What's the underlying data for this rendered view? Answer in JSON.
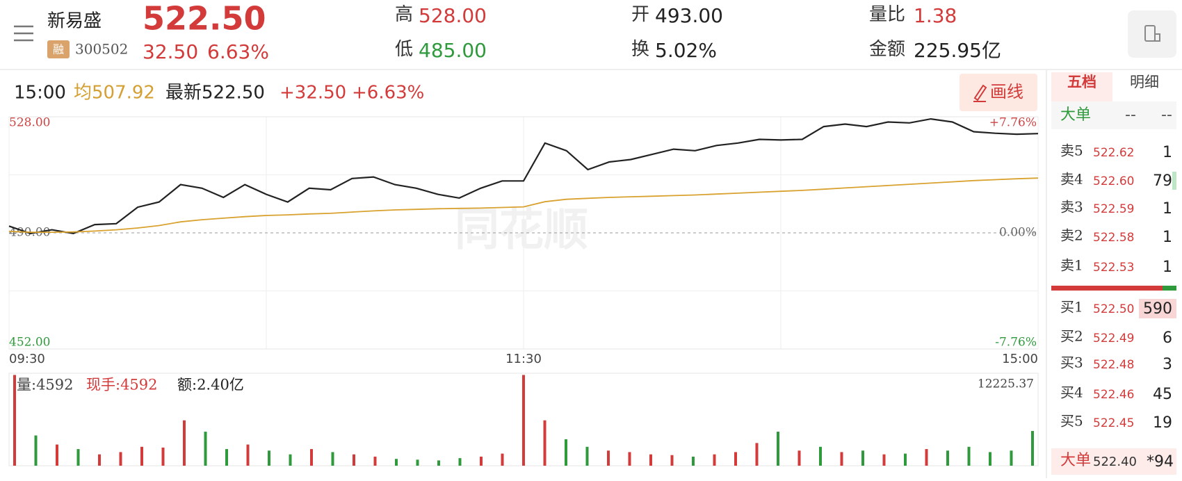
{
  "header": {
    "name": "新易盛",
    "badge": "融",
    "code": "300502",
    "price": "522.50",
    "change": "32.50",
    "change_pct": "6.63%",
    "stats": [
      {
        "label": "高",
        "value": "528.00"
      },
      {
        "label": "低",
        "value": "485.00"
      },
      {
        "label": "开",
        "value": "493.00"
      },
      {
        "label": "换",
        "value": "5.02%"
      },
      {
        "label": "量比",
        "value": "1.38"
      },
      {
        "label": "金额",
        "value": "225.95亿"
      }
    ]
  },
  "info_bar": {
    "time": "15:00",
    "average": "均507.92",
    "latest": "最新522.50",
    "change": "+32.50",
    "change_pct": "+6.63%",
    "draw_button": "画线"
  },
  "watermark": "同花顺",
  "chart_data": [
    {
      "type": "line",
      "x": [
        0,
        5,
        10,
        15,
        20,
        25,
        30,
        35,
        40,
        45,
        50,
        55,
        60,
        65,
        70,
        75,
        80,
        85,
        90,
        95,
        100,
        105,
        110,
        115,
        120,
        125,
        130,
        135,
        140,
        145,
        150,
        155,
        160,
        165,
        170,
        175,
        180,
        185,
        190,
        195,
        200,
        205,
        210,
        215,
        220,
        225,
        230,
        235,
        240
      ],
      "xlim": [
        0,
        240
      ],
      "xticks": [
        {
          "value": 0,
          "label": "09:30"
        },
        {
          "value": 120,
          "label": "11:30"
        },
        {
          "value": 240,
          "label": "15:00"
        }
      ],
      "ylim": [
        452,
        528
      ],
      "yticks": [
        {
          "value": 528,
          "label": "528.00"
        },
        {
          "value": 490,
          "label": "490.00"
        },
        {
          "value": 452,
          "label": "452.00"
        }
      ],
      "y2lim": [
        -7.76,
        7.76
      ],
      "y2ticks": [
        {
          "value": 7.76,
          "label": "+7.76%"
        },
        {
          "value": 0,
          "label": "0.00%"
        },
        {
          "value": -7.76,
          "label": "-7.76%"
        }
      ],
      "series": [
        {
          "color": "#222222",
          "values": [
            492.2,
            489.8,
            491.0,
            489.8,
            492.7,
            493.0,
            498.4,
            500.1,
            505.8,
            504.6,
            501.6,
            505.8,
            502.6,
            500.1,
            504.6,
            504.1,
            507.8,
            508.3,
            505.8,
            504.6,
            502.6,
            501.4,
            504.6,
            507.0,
            507.0,
            519.4,
            516.9,
            510.7,
            513.2,
            514.0,
            515.7,
            517.4,
            516.9,
            518.6,
            519.4,
            520.6,
            520.4,
            520.6,
            524.8,
            525.6,
            524.8,
            526.3,
            526.0,
            527.3,
            526.3,
            523.1,
            522.6,
            522.3,
            522.5
          ]
        },
        {
          "color": "#d9a12e",
          "values": [
            490.5,
            490.2,
            490.2,
            490.3,
            490.6,
            491.0,
            491.6,
            492.4,
            493.6,
            494.3,
            494.8,
            495.3,
            495.7,
            495.9,
            496.2,
            496.4,
            496.8,
            497.2,
            497.5,
            497.7,
            497.9,
            498.0,
            498.1,
            498.3,
            498.5,
            500.2,
            501.0,
            501.3,
            501.6,
            501.8,
            502.0,
            502.2,
            502.4,
            502.7,
            503.0,
            503.3,
            503.6,
            503.9,
            504.3,
            504.7,
            505.1,
            505.5,
            505.9,
            506.3,
            506.7,
            507.1,
            507.4,
            507.7,
            507.92
          ]
        }
      ]
    },
    {
      "type": "bar",
      "x": [
        0,
        5,
        10,
        15,
        20,
        25,
        30,
        35,
        40,
        45,
        50,
        55,
        60,
        65,
        70,
        75,
        80,
        85,
        90,
        95,
        100,
        105,
        110,
        115,
        120,
        125,
        130,
        135,
        140,
        145,
        150,
        155,
        160,
        165,
        170,
        175,
        180,
        185,
        190,
        195,
        200,
        205,
        210,
        215,
        220,
        225,
        230,
        235,
        240
      ],
      "xlim": [
        0,
        240
      ],
      "ylim": [
        0,
        12225.37
      ],
      "yticks": [
        12225.37
      ],
      "labels": [
        "量:4592",
        "现手:4592",
        "额:2.40亿"
      ],
      "values": [
        12000,
        4000,
        2800,
        2200,
        1500,
        1800,
        2500,
        2400,
        6000,
        4500,
        2200,
        2800,
        2000,
        1500,
        2200,
        1800,
        1500,
        1200,
        900,
        800,
        700,
        1000,
        1200,
        1600,
        12000,
        6000,
        3500,
        2500,
        2000,
        1800,
        1500,
        1400,
        1200,
        1500,
        1800,
        3000,
        4500,
        2000,
        2500,
        1800,
        2000,
        1500,
        1600,
        2200,
        2000,
        2500,
        1800,
        2000,
        4592
      ],
      "colors": [
        "#d33a3a",
        "#2f9a3c",
        "#d33a3a",
        "#2f9a3c",
        "#d33a3a",
        "#d33a3a",
        "#d33a3a",
        "#d33a3a",
        "#d33a3a",
        "#2f9a3c",
        "#2f9a3c",
        "#d33a3a",
        "#2f9a3c",
        "#2f9a3c",
        "#d33a3a",
        "#2f9a3c",
        "#d33a3a",
        "#d33a3a",
        "#2f9a3c",
        "#2f9a3c",
        "#2f9a3c",
        "#2f9a3c",
        "#d33a3a",
        "#d33a3a",
        "#d33a3a",
        "#d33a3a",
        "#2f9a3c",
        "#2f9a3c",
        "#d33a3a",
        "#d33a3a",
        "#d33a3a",
        "#d33a3a",
        "#2f9a3c",
        "#d33a3a",
        "#d33a3a",
        "#d33a3a",
        "#2f9a3c",
        "#d33a3a",
        "#2f9a3c",
        "#d33a3a",
        "#2f9a3c",
        "#d33a3a",
        "#2f9a3c",
        "#d33a3a",
        "#2f9a3c",
        "#2f9a3c",
        "#2f9a3c",
        "#2f9a3c",
        "#2f9a3c"
      ]
    }
  ],
  "order_book": {
    "tabs": [
      "五档",
      "明细"
    ],
    "big_order_top": {
      "label": "大单",
      "values": [
        "--",
        "--"
      ]
    },
    "sell": [
      {
        "label": "卖5",
        "price": "522.62",
        "volume": 1
      },
      {
        "label": "卖4",
        "price": "522.60",
        "volume": 79
      },
      {
        "label": "卖3",
        "price": "522.59",
        "volume": 1
      },
      {
        "label": "卖2",
        "price": "522.58",
        "volume": 1
      },
      {
        "label": "卖1",
        "price": "522.53",
        "volume": 1
      }
    ],
    "buy": [
      {
        "label": "买1",
        "price": "522.50",
        "volume": 590
      },
      {
        "label": "买2",
        "price": "522.49",
        "volume": 6
      },
      {
        "label": "买3",
        "price": "522.48",
        "volume": 3
      },
      {
        "label": "买4",
        "price": "522.46",
        "volume": 45
      },
      {
        "label": "买5",
        "price": "522.45",
        "volume": 19
      }
    ],
    "big_order_bottom": {
      "label": "大单",
      "price": "522.40",
      "volume": "*94"
    }
  }
}
